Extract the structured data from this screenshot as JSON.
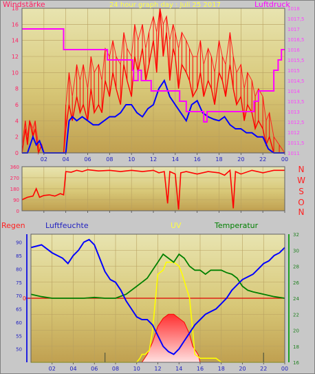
{
  "chart_data": [
    {
      "type": "line",
      "title": "24 hour graph day : Juli 25 2017",
      "left_axis_title": "Windstärke",
      "right_axis_title": "Luftdruck",
      "x_ticks": [
        "02",
        "04",
        "06",
        "08",
        "10",
        "12",
        "14",
        "16",
        "18",
        "20",
        "22",
        "00"
      ],
      "x_range": [
        0,
        24
      ],
      "y_left_ticks": [
        "0",
        "2",
        "4",
        "6",
        "8",
        "10",
        "12",
        "14",
        "16",
        "18"
      ],
      "y_left_range": [
        0,
        18
      ],
      "y_right_ticks": [
        "1011",
        "1011,5",
        "1012",
        "1012,5",
        "1013",
        "1013,5",
        "1014",
        "1014,5",
        "1015",
        "1015,5",
        "1016",
        "1016,5",
        "1017",
        "1017,5",
        "1018"
      ],
      "y_right_range": [
        1011,
        1018
      ],
      "grid": true,
      "series": [
        {
          "color": "#ff0000",
          "axis": "left",
          "x": [
            0,
            0.3,
            0.5,
            0.7,
            1,
            1.2,
            1.5,
            1.8,
            2,
            2.5,
            3,
            3.5,
            3.8,
            4,
            4.3,
            4.6,
            5,
            5.3,
            5.6,
            6,
            6.3,
            6.6,
            7,
            7.3,
            7.6,
            8,
            8.3,
            8.6,
            9,
            9.3,
            9.6,
            10,
            10.3,
            10.6,
            11,
            11.3,
            11.6,
            12,
            12.3,
            12.6,
            12.9,
            13.2,
            13.5,
            13.8,
            14,
            14.3,
            14.6,
            15,
            15.3,
            15.6,
            16,
            16.3,
            16.6,
            17,
            17.3,
            17.6,
            18,
            18.3,
            18.6,
            19,
            19.3,
            19.6,
            20,
            20.3,
            20.6,
            21,
            21.3,
            21.6,
            22,
            22.3,
            22.6,
            23,
            23.5,
            24
          ],
          "values": [
            0,
            3,
            1,
            4,
            2,
            3,
            0,
            1,
            0,
            0,
            0,
            0,
            0,
            3,
            6,
            4,
            7,
            5,
            6,
            4,
            8,
            5,
            6,
            5,
            9,
            7,
            10,
            8,
            6,
            11,
            9,
            7,
            12,
            10,
            13,
            9,
            11,
            14,
            10,
            18,
            12,
            15,
            9,
            13,
            12,
            8,
            11,
            10,
            9,
            7,
            8,
            10,
            7,
            9,
            8,
            6,
            10,
            9,
            7,
            11,
            8,
            6,
            7,
            4,
            6,
            5,
            3,
            4,
            3,
            1,
            2,
            0,
            0,
            0
          ],
          "max_values": [
            1,
            4,
            2,
            4,
            3,
            4,
            1,
            1,
            0,
            0,
            0,
            0,
            0,
            6,
            10,
            7,
            11,
            9,
            11,
            8,
            12,
            10,
            11,
            9,
            13,
            12,
            14,
            12,
            11,
            15,
            13,
            12,
            16,
            14,
            16,
            13,
            15,
            17,
            15,
            18,
            16,
            17,
            14,
            16,
            15,
            13,
            15,
            14,
            13,
            12,
            12,
            14,
            11,
            13,
            12,
            10,
            14,
            12,
            11,
            15,
            12,
            10,
            11,
            8,
            10,
            9,
            7,
            8,
            7,
            4,
            5,
            2,
            1,
            0
          ]
        },
        {
          "color": "#0000ff",
          "axis": "left",
          "x": [
            0,
            0.5,
            1,
            1.3,
            1.6,
            2,
            2.5,
            3,
            3.5,
            4,
            4.3,
            4.6,
            5,
            5.5,
            6,
            6.5,
            7,
            7.5,
            8,
            8.5,
            9,
            9.5,
            10,
            10.5,
            11,
            11.5,
            12,
            12.5,
            13,
            13.5,
            14,
            14.5,
            15,
            15.5,
            16,
            16.5,
            17,
            17.5,
            18,
            18.5,
            19,
            19.5,
            20,
            20.5,
            21,
            21.5,
            22,
            22.5,
            23,
            23.5,
            24
          ],
          "values": [
            0,
            0,
            2,
            1,
            1.5,
            0,
            0,
            0,
            0,
            0,
            4,
            4.5,
            4,
            4.5,
            4,
            3.5,
            3.5,
            4,
            4.5,
            4.5,
            5,
            6,
            6,
            5,
            4.5,
            5.5,
            6,
            8,
            9,
            7,
            6,
            5,
            4,
            6,
            6.5,
            5,
            4.5,
            4.2,
            4,
            4.5,
            3.5,
            3,
            3,
            2.5,
            2.5,
            2,
            2,
            0.5,
            0,
            0,
            0
          ]
        },
        {
          "color": "#ff00ff",
          "axis": "right",
          "x": [
            0,
            3.8,
            3.8,
            5.6,
            5.6,
            5.9,
            5.9,
            7.8,
            7.8,
            10.1,
            10.1,
            10.2,
            10.2,
            10.6,
            10.6,
            10.9,
            10.9,
            11.8,
            11.8,
            12.2,
            12.2,
            14.4,
            14.4,
            15.0,
            15.0,
            16.6,
            16.6,
            16.9,
            16.9,
            18.3,
            18.3,
            18.8,
            18.8,
            21.2,
            21.2,
            21.6,
            21.6,
            21.9,
            21.9,
            22.2,
            22.2,
            23.0,
            23.0,
            23.4,
            23.4,
            23.7,
            23.7,
            24
          ],
          "values": [
            1017,
            1017,
            1016,
            1016,
            1016,
            1016,
            1016,
            1016,
            1015.5,
            1015.5,
            1015,
            1015,
            1014.5,
            1014.5,
            1015,
            1015,
            1014.5,
            1014.5,
            1014,
            1014,
            1014,
            1014,
            1013.5,
            1013.5,
            1013,
            1013,
            1012.5,
            1012.5,
            1013,
            1013,
            1013,
            1013,
            1013,
            1013,
            1013.5,
            1013.5,
            1014,
            1014,
            1014,
            1014,
            1014,
            1014,
            1015,
            1015,
            1015.5,
            1015.5,
            1016,
            1016
          ]
        }
      ]
    },
    {
      "type": "line",
      "compass_labels": [
        "N",
        "W",
        "S",
        "O",
        "N"
      ],
      "y_ticks": [
        "0",
        "90",
        "180",
        "270",
        "360"
      ],
      "y_range": [
        0,
        360
      ],
      "x_range": [
        0,
        24
      ],
      "grid": true,
      "series": [
        {
          "color": "#ff0000",
          "x": [
            0,
            0.5,
            1,
            1.3,
            1.6,
            2,
            2.5,
            3,
            3.5,
            3.8,
            4,
            4.5,
            5,
            5.5,
            6,
            7,
            8,
            9,
            10,
            11,
            12,
            12.5,
            13,
            13.3,
            13.5,
            14,
            14.3,
            14.5,
            15,
            16,
            17,
            18,
            18.5,
            19,
            19.3,
            19.5,
            20,
            21,
            22,
            22.5,
            23,
            23.5,
            24
          ],
          "values": [
            90,
            110,
            120,
            180,
            110,
            125,
            130,
            120,
            140,
            130,
            320,
            315,
            330,
            320,
            335,
            325,
            330,
            320,
            330,
            320,
            330,
            310,
            320,
            60,
            320,
            300,
            10,
            310,
            320,
            300,
            320,
            310,
            290,
            330,
            20,
            320,
            300,
            330,
            310,
            320,
            330,
            330,
            330
          ]
        }
      ]
    },
    {
      "type": "line",
      "headers": [
        "Regen",
        "Luftfeuchte",
        "UV",
        "Temperatur"
      ],
      "x_ticks": [
        "02",
        "04",
        "06",
        "08",
        "10",
        "12",
        "14",
        "16",
        "18",
        "20",
        "22",
        "00"
      ],
      "x_range": [
        0,
        24
      ],
      "rain_zero_label": "0",
      "humidity_ticks": [
        "50",
        "55",
        "60",
        "65",
        "70",
        "75",
        "80",
        "85",
        "90"
      ],
      "humidity_range": [
        45,
        93
      ],
      "temperature_ticks": [
        "16",
        "18",
        "20",
        "22",
        "24",
        "26",
        "28",
        "30",
        "32"
      ],
      "temperature_range": [
        16,
        32
      ],
      "grid": true,
      "series": [
        {
          "color": "#0000ff",
          "axis": "humidity",
          "x": [
            0,
            1,
            2,
            3,
            3.5,
            4,
            4.5,
            5,
            5.5,
            6,
            6.5,
            7,
            7.5,
            8,
            8.5,
            9,
            9.5,
            10,
            10.5,
            11,
            11.5,
            12,
            12.5,
            13,
            13.5,
            14,
            14.5,
            15,
            15.5,
            16,
            16.5,
            17,
            17.5,
            18,
            18.5,
            19,
            19.5,
            20,
            20.5,
            21,
            21.5,
            22,
            22.5,
            23,
            23.5,
            24
          ],
          "values": [
            88,
            89,
            86,
            84,
            82,
            85,
            87,
            90,
            91,
            89,
            84,
            79,
            76,
            75,
            72,
            68,
            65,
            62,
            61,
            61,
            59,
            55,
            51,
            49,
            48,
            50,
            53,
            56,
            59,
            61,
            63,
            64,
            65,
            67,
            69,
            72,
            74,
            76,
            77,
            78,
            80,
            82,
            83,
            85,
            86,
            88
          ]
        },
        {
          "color": "#008000",
          "axis": "temperature",
          "x": [
            0,
            1,
            2,
            3,
            4,
            5,
            6,
            7,
            8,
            9,
            10,
            10.5,
            11,
            11.5,
            12,
            12.5,
            13,
            13.5,
            14,
            14.5,
            15,
            15.5,
            16,
            16.5,
            17,
            17.5,
            18,
            18.5,
            19,
            19.5,
            20,
            20.5,
            21,
            22,
            23,
            24
          ],
          "values": [
            24.5,
            24.2,
            24,
            24,
            24,
            24,
            24.1,
            24,
            24,
            24.5,
            25.5,
            26,
            26.5,
            27.5,
            28.5,
            29.5,
            29,
            28.5,
            29.5,
            29,
            28,
            27.5,
            27.5,
            27,
            27.5,
            27.5,
            27.5,
            27.2,
            27,
            26.5,
            25.5,
            25,
            24.8,
            24.5,
            24.2,
            24
          ]
        },
        {
          "color": "#ffff00",
          "axis": "temperature",
          "x": [
            0,
            8.2,
            8.2,
            9.8,
            10,
            10.3,
            10.5,
            10.8,
            11.2,
            11.5,
            12,
            12.5,
            12.8,
            13,
            13.5,
            14,
            14.3,
            15,
            15.3,
            15.5,
            16,
            17,
            17.5,
            18,
            18.5,
            24
          ],
          "values": [
            16,
            16,
            16,
            16,
            16,
            16.5,
            17,
            17,
            17.5,
            20,
            27,
            27.5,
            28.5,
            28.5,
            28.5,
            28,
            27,
            24,
            20,
            17,
            16.5,
            16.5,
            16.5,
            16,
            16,
            16
          ]
        },
        {
          "color": "#ff0000",
          "axis": "temperature",
          "x": [
            9,
            10.5,
            11,
            11.5,
            12,
            12.5,
            13,
            13.5,
            14,
            14.5,
            15,
            15.3,
            15.8,
            16
          ],
          "values": [
            16,
            16,
            17,
            18.5,
            20.5,
            21.5,
            22,
            22,
            21.5,
            21,
            19.5,
            18,
            17,
            16
          ]
        }
      ]
    }
  ]
}
